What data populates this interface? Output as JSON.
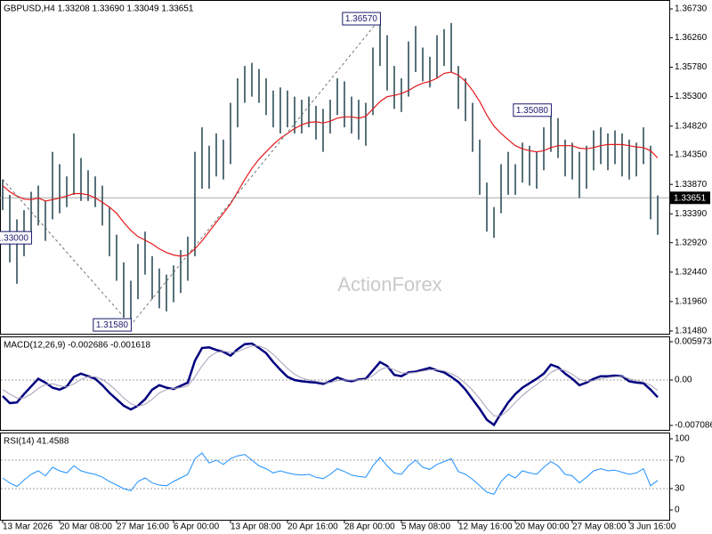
{
  "chart_data": [
    {
      "type": "ohlc",
      "title": "GBPUSD,H4  1.33208 1.33690 1.33049 1.33651",
      "color": "#2f4f5a",
      "high": [
        1.3395,
        1.337,
        1.333,
        1.3345,
        1.3375,
        1.3385,
        1.336,
        1.344,
        1.342,
        1.34,
        1.347,
        1.343,
        1.341,
        1.34,
        1.3385,
        1.335,
        1.3305,
        1.326,
        1.323,
        1.329,
        1.331,
        1.327,
        1.325,
        1.324,
        1.3255,
        1.328,
        1.3302,
        1.344,
        1.348,
        1.345,
        1.347,
        1.346,
        1.352,
        1.356,
        1.358,
        1.3585,
        1.3575,
        1.356,
        1.354,
        1.3545,
        1.354,
        1.353,
        1.3525,
        1.353,
        1.3515,
        1.351,
        1.3525,
        1.356,
        1.3555,
        1.353,
        1.3525,
        1.352,
        1.361,
        1.3657,
        1.363,
        1.358,
        1.356,
        1.362,
        1.3645,
        1.361,
        1.3595,
        1.363,
        1.364,
        1.365,
        1.358,
        1.356,
        1.352,
        1.346,
        1.339,
        1.335,
        1.342,
        1.344,
        1.342,
        1.3455,
        1.345,
        1.344,
        1.348,
        1.3508,
        1.3495,
        1.346,
        1.3455,
        1.344,
        1.345,
        1.3475,
        1.348,
        1.347,
        1.3475,
        1.347,
        1.346,
        1.3455,
        1.348,
        1.345,
        1.3369
      ],
      "low": [
        1.3345,
        1.326,
        1.3225,
        1.327,
        1.33,
        1.332,
        1.3295,
        1.333,
        1.334,
        1.335,
        1.337,
        1.336,
        1.336,
        1.335,
        1.332,
        1.327,
        1.323,
        1.317,
        1.3158,
        1.32,
        1.324,
        1.32,
        1.3185,
        1.318,
        1.3195,
        1.321,
        1.323,
        1.327,
        1.338,
        1.338,
        1.34,
        1.3395,
        1.342,
        1.348,
        1.352,
        1.353,
        1.352,
        1.35,
        1.348,
        1.347,
        1.348,
        1.347,
        1.347,
        1.348,
        1.346,
        1.344,
        1.347,
        1.35,
        1.348,
        1.347,
        1.346,
        1.345,
        1.35,
        1.358,
        1.354,
        1.351,
        1.3505,
        1.353,
        1.357,
        1.3555,
        1.3545,
        1.356,
        1.358,
        1.357,
        1.351,
        1.349,
        1.344,
        1.337,
        1.331,
        1.33,
        1.334,
        1.337,
        1.337,
        1.339,
        1.3385,
        1.338,
        1.341,
        1.344,
        1.343,
        1.34,
        1.3395,
        1.3365,
        1.338,
        1.341,
        1.342,
        1.341,
        1.342,
        1.34,
        1.3395,
        1.34,
        1.342,
        1.333,
        1.33049
      ],
      "ma": {
        "color": "#e3191c",
        "values": [
          1.3385,
          1.3375,
          1.3368,
          1.3363,
          1.3362,
          1.3365,
          1.336,
          1.3362,
          1.3365,
          1.3368,
          1.3372,
          1.3372,
          1.337,
          1.3365,
          1.3358,
          1.335,
          1.334,
          1.3325,
          1.3312,
          1.3302,
          1.3296,
          1.329,
          1.3282,
          1.3276,
          1.3272,
          1.327,
          1.3272,
          1.3282,
          1.3295,
          1.331,
          1.3325,
          1.334,
          1.3355,
          1.3375,
          1.3395,
          1.3413,
          1.3428,
          1.344,
          1.3452,
          1.3462,
          1.347,
          1.3478,
          1.3484,
          1.3488,
          1.3489,
          1.3487,
          1.349,
          1.3495,
          1.3497,
          1.3497,
          1.3495,
          1.3498,
          1.351,
          1.3522,
          1.353,
          1.3532,
          1.3535,
          1.354,
          1.3547,
          1.3552,
          1.3555,
          1.356,
          1.3568,
          1.357,
          1.3565,
          1.3555,
          1.354,
          1.3522,
          1.35,
          1.3482,
          1.347,
          1.346,
          1.345,
          1.3445,
          1.3442,
          1.344,
          1.3442,
          1.3447,
          1.345,
          1.345,
          1.345,
          1.3446,
          1.3445,
          1.3447,
          1.345,
          1.3452,
          1.3452,
          1.3452,
          1.345,
          1.3448,
          1.3447,
          1.3442,
          1.343
        ]
      },
      "ylim": [
        1.31436,
        1.36875
      ],
      "yticks": [
        {
          "value": 1.3673,
          "label": "1.36730"
        },
        {
          "value": 1.3626,
          "label": "1.36260"
        },
        {
          "value": 1.3578,
          "label": "1.35780"
        },
        {
          "value": 1.353,
          "label": "1.35300"
        },
        {
          "value": 1.3482,
          "label": "1.34820"
        },
        {
          "value": 1.3435,
          "label": "1.34350"
        },
        {
          "value": 1.3387,
          "label": "1.33870"
        },
        {
          "value": 1.3339,
          "label": "1.33390"
        },
        {
          "value": 1.3292,
          "label": "1.32920"
        },
        {
          "value": 1.3244,
          "label": "1.32440"
        },
        {
          "value": 1.3196,
          "label": "1.31960"
        },
        {
          "value": 1.3148,
          "label": "1.31480"
        }
      ],
      "last_price": 1.33651,
      "annotations": [
        {
          "value": 1.3158,
          "label": "1.31580"
        },
        {
          "value": 1.3657,
          "label": "1.36570"
        },
        {
          "value": 1.3508,
          "label": "1.35080"
        },
        {
          "value": 1.33,
          "label": "1.33000"
        }
      ],
      "watermark": "ActionForex",
      "grid": false
    },
    {
      "type": "line",
      "title": "MACD(12,26,9) -0.002686 -0.001618",
      "series": [
        {
          "color": "#00007f",
          "values": [
            -0.0025,
            -0.0036,
            -0.0035,
            -0.0022,
            -0.001,
            0.0002,
            -0.0004,
            -0.0012,
            -0.0015,
            -0.001,
            0.0005,
            0.001,
            0.0006,
            0.0002,
            -0.0008,
            -0.002,
            -0.003,
            -0.004,
            -0.0046,
            -0.004,
            -0.003,
            -0.0015,
            -0.0008,
            -0.0012,
            -0.0014,
            -0.0009,
            -0.0004,
            0.003,
            0.005,
            0.0051,
            0.0047,
            0.0044,
            0.0038,
            0.0048,
            0.0056,
            0.0057,
            0.005,
            0.0042,
            0.0028,
            0.0016,
            0.0005,
            0.0,
            -0.0002,
            -0.0003,
            -0.0004,
            -0.0006,
            -0.0002,
            0.0004,
            0.0,
            -0.0002,
            0.0001,
            0.0002,
            0.0015,
            0.0028,
            0.0022,
            0.0008,
            0.0006,
            0.0012,
            0.0013,
            0.0016,
            0.0019,
            0.0015,
            0.0012,
            0.0005,
            -0.0003,
            -0.0015,
            -0.003,
            -0.0045,
            -0.0062,
            -0.007,
            -0.0052,
            -0.0035,
            -0.0022,
            -0.0012,
            -0.0005,
            0.0002,
            0.001,
            0.0024,
            0.002,
            0.001,
            0.0002,
            -0.0008,
            -0.0004,
            0.0002,
            0.0006,
            0.0006,
            0.0007,
            0.0006,
            -0.0002,
            -0.0004,
            -0.0005,
            -0.0015,
            -0.002686
          ],
          "width": 2.5
        },
        {
          "color": "#a6a0b8",
          "values": [
            -0.0015,
            -0.0022,
            -0.0028,
            -0.0028,
            -0.0022,
            -0.0013,
            -0.0007,
            -0.0006,
            -0.0009,
            -0.0011,
            -0.0006,
            0.0001,
            0.0005,
            0.0005,
            0.0001,
            -0.0007,
            -0.0017,
            -0.0028,
            -0.0037,
            -0.0041,
            -0.0038,
            -0.003,
            -0.002,
            -0.0015,
            -0.0013,
            -0.0012,
            -0.0009,
            0.0005,
            0.0022,
            0.0036,
            0.0043,
            0.0045,
            0.0043,
            0.0044,
            0.0049,
            0.0053,
            0.0053,
            0.0049,
            0.004,
            0.0029,
            0.0018,
            0.0009,
            0.0003,
            0.0,
            -0.0002,
            -0.0004,
            -0.0004,
            -0.0001,
            0.0,
            0.0,
            0.0,
            0.0001,
            0.0007,
            0.0016,
            0.002,
            0.0016,
            0.0011,
            0.0011,
            0.0012,
            0.0014,
            0.0016,
            0.0016,
            0.0014,
            0.001,
            0.0004,
            -0.0005,
            -0.0016,
            -0.0029,
            -0.0044,
            -0.0056,
            -0.0056,
            -0.0047,
            -0.0035,
            -0.0024,
            -0.0015,
            -0.0007,
            0.0001,
            0.0012,
            0.0017,
            0.0015,
            0.0009,
            0.0001,
            -0.0002,
            -0.0001,
            0.0002,
            0.0004,
            0.0005,
            0.0006,
            0.0002,
            -0.0001,
            -0.0003,
            -0.0008,
            -0.001618
          ],
          "width": 1
        }
      ],
      "ylim": [
        -0.007086,
        0.005973
      ],
      "yticks": [
        0.005973,
        {
          "value": 0,
          "label": "0.00"
        },
        -0.007086
      ],
      "grid": true
    },
    {
      "type": "line",
      "title": "RSI(14) 41.4588",
      "series": [
        {
          "color": "#1e90ff",
          "width": 1,
          "values": [
            45,
            38,
            33,
            42,
            50,
            55,
            48,
            60,
            55,
            52,
            62,
            55,
            52,
            50,
            46,
            40,
            35,
            30,
            27,
            40,
            45,
            38,
            35,
            34,
            40,
            45,
            50,
            72,
            80,
            66,
            70,
            64,
            72,
            76,
            78,
            70,
            62,
            58,
            52,
            55,
            52,
            50,
            49,
            50,
            46,
            44,
            50,
            58,
            54,
            49,
            47,
            46,
            62,
            74,
            62,
            52,
            50,
            62,
            70,
            60,
            57,
            64,
            68,
            72,
            54,
            50,
            43,
            34,
            25,
            22,
            40,
            50,
            45,
            55,
            52,
            50,
            60,
            68,
            62,
            50,
            48,
            38,
            46,
            55,
            58,
            55,
            56,
            53,
            50,
            52,
            58,
            34,
            41.4588
          ]
        }
      ],
      "ylim": [
        0,
        100
      ],
      "yticks": [
        100,
        70,
        30,
        0
      ],
      "grid": true,
      "categories": [
        "13 Mar 2026",
        null,
        null,
        null,
        null,
        null,
        null,
        null,
        "20 Mar 08:00",
        null,
        null,
        null,
        null,
        null,
        null,
        null,
        "27 Mar 16:00",
        null,
        null,
        null,
        null,
        null,
        null,
        null,
        "6 Apr 00:00",
        null,
        null,
        null,
        null,
        null,
        null,
        null,
        "13 Apr 08:00",
        null,
        null,
        null,
        null,
        null,
        null,
        null,
        "20 Apr 16:00",
        null,
        null,
        null,
        null,
        null,
        null,
        null,
        "28 Apr 00:00",
        null,
        null,
        null,
        null,
        null,
        null,
        null,
        "5 May 08:00",
        null,
        null,
        null,
        null,
        null,
        null,
        null,
        "12 May 16:00",
        null,
        null,
        null,
        null,
        null,
        null,
        null,
        "20 May 00:00",
        null,
        null,
        null,
        null,
        null,
        null,
        null,
        "27 May 08:00",
        null,
        null,
        null,
        null,
        null,
        null,
        null,
        "3 Jun 16:00",
        null,
        null,
        null,
        null
      ]
    }
  ]
}
